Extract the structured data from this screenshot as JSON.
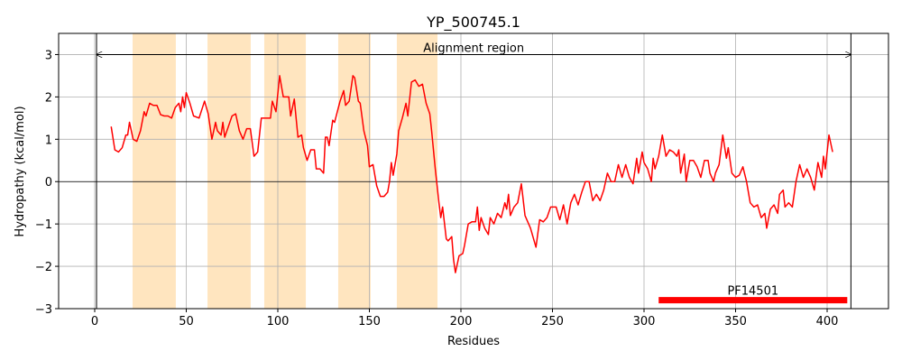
{
  "chart_data": {
    "type": "line",
    "title": "YP_500745.1",
    "xlabel": "Residues",
    "ylabel": "Hydropathy (kcal/mol)",
    "color": "#ff0000",
    "x": [
      9,
      11,
      13,
      15,
      17,
      18,
      19,
      21,
      23,
      25,
      27,
      28,
      30,
      32,
      34,
      36,
      38,
      40,
      42,
      44,
      46,
      47,
      48,
      49,
      50,
      52,
      54,
      57,
      60,
      62,
      64,
      66,
      67,
      69,
      70,
      71,
      73,
      75,
      77,
      79,
      81,
      83,
      85,
      87,
      89,
      91,
      96,
      97,
      99,
      101,
      103,
      106,
      107,
      109,
      111,
      113,
      114,
      116,
      118,
      120,
      121,
      123,
      125,
      126,
      127,
      128,
      130,
      131,
      134,
      136,
      137,
      139,
      141,
      142,
      144,
      145,
      147,
      149,
      150,
      152,
      154,
      156,
      158,
      160,
      161,
      162,
      163,
      165,
      166,
      168,
      170,
      171,
      173,
      175,
      177,
      179,
      181,
      183,
      184,
      186,
      188,
      189,
      190,
      192,
      193,
      195,
      196,
      197,
      199,
      201,
      202,
      204,
      206,
      208,
      209,
      210,
      211,
      213,
      215,
      216,
      218,
      220,
      222,
      224,
      225,
      226,
      227,
      229,
      231,
      233,
      235,
      238,
      241,
      243,
      245,
      247,
      249,
      252,
      254,
      256,
      258,
      260,
      262,
      264,
      266,
      268,
      270,
      272,
      274,
      276,
      278,
      280,
      282,
      284,
      286,
      288,
      290,
      292,
      294,
      296,
      297,
      299,
      300,
      302,
      304,
      305,
      306,
      308,
      310,
      312,
      314,
      316,
      318,
      319,
      320,
      322,
      323,
      325,
      327,
      329,
      331,
      333,
      335,
      336,
      338,
      339,
      341,
      343,
      345,
      346,
      348,
      350,
      352,
      354,
      356,
      358,
      360,
      362,
      364,
      366,
      367,
      369,
      371,
      373,
      374,
      376,
      377,
      379,
      381,
      383,
      385,
      387,
      389,
      391,
      393,
      395,
      397,
      398,
      399,
      401,
      403
    ],
    "values": [
      1.3,
      0.75,
      0.7,
      0.8,
      1.1,
      1.1,
      1.4,
      1.0,
      0.95,
      1.2,
      1.65,
      1.55,
      1.85,
      1.8,
      1.8,
      1.58,
      1.55,
      1.55,
      1.5,
      1.75,
      1.85,
      1.65,
      2.0,
      1.75,
      2.1,
      1.85,
      1.55,
      1.5,
      1.9,
      1.6,
      1.0,
      1.4,
      1.2,
      1.1,
      1.4,
      1.05,
      1.3,
      1.55,
      1.6,
      1.2,
      1.0,
      1.25,
      1.25,
      0.6,
      0.7,
      1.5,
      1.5,
      1.9,
      1.65,
      2.5,
      2.0,
      2.0,
      1.55,
      1.95,
      1.05,
      1.1,
      0.8,
      0.5,
      0.75,
      0.75,
      0.3,
      0.3,
      0.2,
      1.05,
      1.05,
      0.85,
      1.45,
      1.4,
      1.9,
      2.15,
      1.8,
      1.9,
      2.5,
      2.45,
      1.9,
      1.85,
      1.2,
      0.85,
      0.35,
      0.4,
      -0.1,
      -0.35,
      -0.35,
      -0.25,
      0.0,
      0.45,
      0.15,
      0.65,
      1.2,
      1.5,
      1.85,
      1.55,
      2.35,
      2.4,
      2.25,
      2.3,
      1.85,
      1.6,
      1.2,
      0.3,
      -0.5,
      -0.85,
      -0.6,
      -1.35,
      -1.4,
      -1.3,
      -1.85,
      -2.15,
      -1.75,
      -1.7,
      -1.5,
      -1.0,
      -0.95,
      -0.95,
      -0.6,
      -1.15,
      -0.85,
      -1.1,
      -1.25,
      -0.85,
      -1.0,
      -0.75,
      -0.85,
      -0.5,
      -0.65,
      -0.3,
      -0.8,
      -0.6,
      -0.5,
      -0.05,
      -0.8,
      -1.1,
      -1.55,
      -0.9,
      -0.95,
      -0.85,
      -0.6,
      -0.6,
      -0.9,
      -0.55,
      -1.0,
      -0.5,
      -0.3,
      -0.55,
      -0.25,
      0.0,
      0.0,
      -0.45,
      -0.3,
      -0.45,
      -0.2,
      0.2,
      0.0,
      0.0,
      0.4,
      0.1,
      0.4,
      0.1,
      -0.05,
      0.55,
      0.2,
      0.7,
      0.45,
      0.3,
      0.0,
      0.55,
      0.3,
      0.6,
      1.1,
      0.6,
      0.75,
      0.7,
      0.6,
      0.75,
      0.2,
      0.65,
      0.0,
      0.5,
      0.5,
      0.35,
      0.1,
      0.5,
      0.5,
      0.2,
      0.0,
      0.2,
      0.4,
      1.1,
      0.55,
      0.8,
      0.2,
      0.1,
      0.15,
      0.35,
      0.0,
      -0.5,
      -0.6,
      -0.55,
      -0.85,
      -0.75,
      -1.1,
      -0.65,
      -0.55,
      -0.75,
      -0.3,
      -0.2,
      -0.6,
      -0.5,
      -0.6,
      0.0,
      0.4,
      0.1,
      0.3,
      0.1,
      -0.2,
      0.45,
      0.1,
      0.6,
      0.3,
      1.1,
      0.7
    ],
    "xlim": [
      -19.7,
      433.5
    ],
    "ylim": [
      -3,
      3.5
    ],
    "xticks": [
      0,
      50,
      100,
      150,
      200,
      250,
      300,
      350,
      400
    ],
    "yticks": [
      {
        "value": -3,
        "label": "−3"
      },
      {
        "value": -2,
        "label": "−2"
      },
      {
        "value": -1,
        "label": "−1"
      },
      0,
      1,
      2,
      3
    ],
    "grid": true,
    "hline": 0,
    "vlines": [
      1,
      413
    ],
    "shaded_regions": [
      [
        20.7,
        44.3
      ],
      [
        61.6,
        85.2
      ],
      [
        92.6,
        115.3
      ],
      [
        133,
        150.7
      ],
      [
        165,
        187.2
      ]
    ],
    "shade_color": "#ffe5bf",
    "annotations": [
      {
        "text": "Alignment region",
        "x": [
          1,
          413
        ],
        "y": 3
      }
    ],
    "domains": [
      {
        "name": "PF14501",
        "start": 308,
        "end": 411,
        "y": -2.8
      }
    ]
  }
}
